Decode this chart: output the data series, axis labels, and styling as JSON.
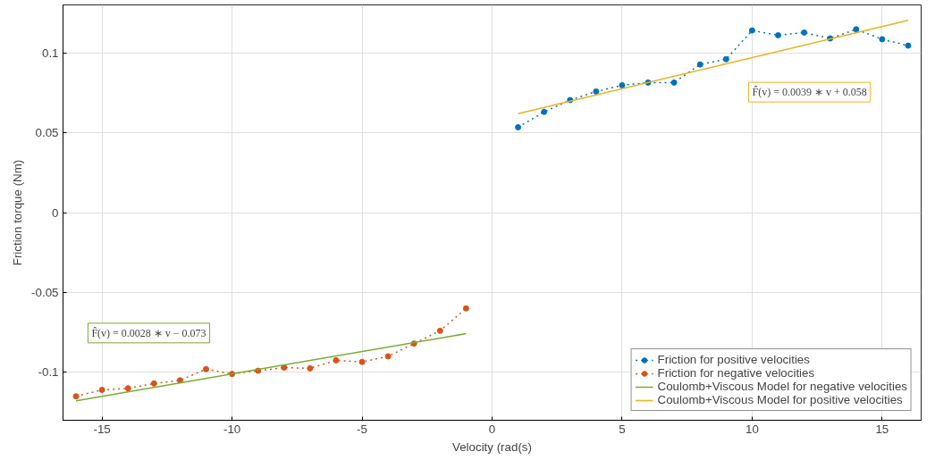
{
  "chart_data": {
    "type": "line",
    "xlabel": "Velocity (rad(s)",
    "ylabel": "Friction torque (Nm)",
    "xlim": [
      -16.5,
      16.5
    ],
    "ylim": [
      -0.13,
      0.13
    ],
    "xticks": [
      -15,
      -10,
      -5,
      0,
      5,
      10,
      15
    ],
    "yticks": [
      -0.1,
      -0.05,
      0,
      0.05,
      0.1
    ],
    "grid": true,
    "legend": "bottom right",
    "series": [
      {
        "name": "Friction for positive velocities",
        "color": "#0072bd",
        "marker": "circle",
        "line_style": "dotted",
        "x": [
          1,
          2,
          3,
          4,
          5,
          6,
          7,
          8,
          9,
          10,
          11,
          12,
          13,
          14,
          15,
          16
        ],
        "values": [
          0.0534,
          0.063,
          0.0704,
          0.0758,
          0.0797,
          0.0814,
          0.0814,
          0.0927,
          0.096,
          0.114,
          0.111,
          0.1127,
          0.109,
          0.1147,
          0.1085,
          0.1045
        ]
      },
      {
        "name": "Friction for negative velocities",
        "color": "#d95319",
        "marker": "circle",
        "line_style": "dotted",
        "x": [
          -16,
          -15,
          -14,
          -13,
          -12,
          -11,
          -10,
          -9,
          -8,
          -7,
          -6,
          -5,
          -4,
          -3,
          -2,
          -1
        ],
        "values": [
          -0.115,
          -0.111,
          -0.11,
          -0.107,
          -0.105,
          -0.098,
          -0.101,
          -0.099,
          -0.097,
          -0.0975,
          -0.0925,
          -0.0935,
          -0.09,
          -0.082,
          -0.074,
          -0.06
        ]
      },
      {
        "name": "Coulomb+Viscous Model for negative velocities",
        "color": "#77ac30",
        "marker": "none",
        "line_style": "solid",
        "x": [
          -16,
          -1
        ],
        "values": [
          -0.1178,
          -0.0758
        ]
      },
      {
        "name": "Coulomb+Viscous Model for positive velocities",
        "color": "#edb120",
        "marker": "none",
        "line_style": "solid",
        "x": [
          1,
          16
        ],
        "values": [
          0.0619,
          0.1204
        ]
      }
    ],
    "annotations": [
      "F̂(v) = 0.0039 ∗ v + 0.058",
      "F̂(v) = 0.0028 ∗ v − 0.073"
    ]
  }
}
